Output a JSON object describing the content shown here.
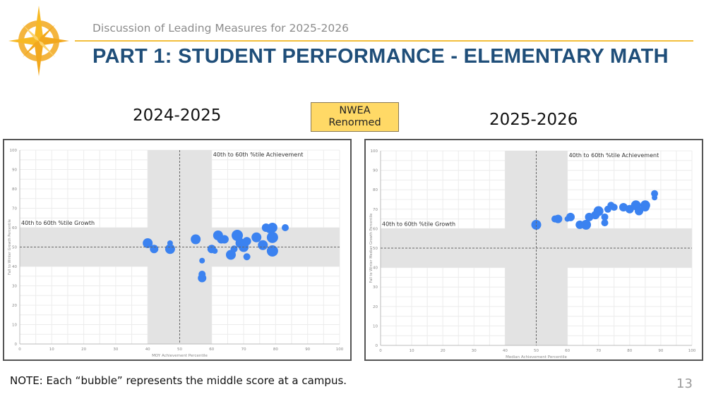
{
  "header": {
    "subtitle": "Discussion of Leading Measures for 2025-2026",
    "title": "PART 1:  STUDENT PERFORMANCE - ELEMENTARY MATH",
    "accent_color": "#f2be3c",
    "title_color": "#1f4e79"
  },
  "badge": {
    "line1": "NWEA",
    "line2": "Renormed",
    "color": "#ffd966"
  },
  "footer": {
    "note": "NOTE: Each “bubble” represents the middle score at a campus.",
    "page_number": "13"
  },
  "chart_data": [
    {
      "type": "scatter",
      "heading": "2024-2025",
      "xlabel": "MOY Achievement Percentile",
      "ylabel": "Fall to Winter Growth Percentile",
      "xlim": [
        0,
        100
      ],
      "ylim": [
        0,
        100
      ],
      "xticks": [
        "0",
        "10",
        "20",
        "30",
        "40",
        "50",
        "60",
        "70",
        "80",
        "90",
        "100"
      ],
      "yticks": [
        "0",
        "10",
        "20",
        "30",
        "40",
        "50",
        "60",
        "70",
        "80",
        "90",
        "100"
      ],
      "grid": true,
      "bands": {
        "x": [
          40,
          60
        ],
        "y": [
          40,
          60
        ],
        "color": "#e3e3e3"
      },
      "reference_lines": {
        "x": 50,
        "y": 50
      },
      "annotations": [
        "40th to 60th %tile Achievement",
        "40th to 60th %tile Growth"
      ],
      "marker_color": "#3b82f0",
      "points": [
        {
          "x": 40,
          "y": 52,
          "size": 7
        },
        {
          "x": 42,
          "y": 49,
          "size": 6
        },
        {
          "x": 47,
          "y": 52,
          "size": 4
        },
        {
          "x": 47,
          "y": 49,
          "size": 7
        },
        {
          "x": 55,
          "y": 54,
          "size": 7
        },
        {
          "x": 57,
          "y": 43,
          "size": 4
        },
        {
          "x": 57,
          "y": 36,
          "size": 5
        },
        {
          "x": 57,
          "y": 34,
          "size": 6
        },
        {
          "x": 60,
          "y": 49,
          "size": 6
        },
        {
          "x": 61,
          "y": 48,
          "size": 4
        },
        {
          "x": 62,
          "y": 56,
          "size": 7
        },
        {
          "x": 63,
          "y": 54,
          "size": 6
        },
        {
          "x": 64,
          "y": 54,
          "size": 6
        },
        {
          "x": 66,
          "y": 46,
          "size": 7
        },
        {
          "x": 67,
          "y": 49,
          "size": 5
        },
        {
          "x": 68,
          "y": 56,
          "size": 8
        },
        {
          "x": 69,
          "y": 52,
          "size": 7
        },
        {
          "x": 70,
          "y": 50,
          "size": 7
        },
        {
          "x": 71,
          "y": 45,
          "size": 5
        },
        {
          "x": 71,
          "y": 53,
          "size": 6
        },
        {
          "x": 74,
          "y": 55,
          "size": 7
        },
        {
          "x": 76,
          "y": 51,
          "size": 7
        },
        {
          "x": 77,
          "y": 60,
          "size": 6
        },
        {
          "x": 78,
          "y": 59,
          "size": 5
        },
        {
          "x": 79,
          "y": 60,
          "size": 7
        },
        {
          "x": 79,
          "y": 55,
          "size": 8
        },
        {
          "x": 79,
          "y": 48,
          "size": 8
        },
        {
          "x": 83,
          "y": 60,
          "size": 5
        }
      ]
    },
    {
      "type": "scatter",
      "heading": "2025-2026",
      "xlabel": "Median Achievement Percentile",
      "ylabel": "Fall to Winter Median Growth Percentile",
      "xlim": [
        0,
        100
      ],
      "ylim": [
        0,
        100
      ],
      "xticks": [
        "0",
        "10",
        "20",
        "30",
        "40",
        "50",
        "60",
        "70",
        "80",
        "90",
        "100"
      ],
      "yticks": [
        "0",
        "10",
        "20",
        "30",
        "40",
        "50",
        "60",
        "70",
        "80",
        "90",
        "100"
      ],
      "grid": true,
      "bands": {
        "x": [
          40,
          60
        ],
        "y": [
          40,
          60
        ],
        "color": "#e3e3e3"
      },
      "reference_lines": {
        "x": 50,
        "y": 50
      },
      "annotations": [
        "40th to 60th %tile Achievement",
        "40th to 60th %tile Growth"
      ],
      "marker_color": "#3b82f0",
      "points": [
        {
          "x": 50,
          "y": 62,
          "size": 7
        },
        {
          "x": 56,
          "y": 65,
          "size": 5
        },
        {
          "x": 57,
          "y": 65,
          "size": 6
        },
        {
          "x": 60,
          "y": 65,
          "size": 4
        },
        {
          "x": 61,
          "y": 66,
          "size": 6
        },
        {
          "x": 64,
          "y": 62,
          "size": 6
        },
        {
          "x": 65,
          "y": 62,
          "size": 5
        },
        {
          "x": 66,
          "y": 62,
          "size": 7
        },
        {
          "x": 67,
          "y": 66,
          "size": 6
        },
        {
          "x": 69,
          "y": 67,
          "size": 6
        },
        {
          "x": 70,
          "y": 69,
          "size": 7
        },
        {
          "x": 72,
          "y": 63,
          "size": 5
        },
        {
          "x": 72,
          "y": 66,
          "size": 5
        },
        {
          "x": 73,
          "y": 70,
          "size": 5
        },
        {
          "x": 74,
          "y": 72,
          "size": 5
        },
        {
          "x": 75,
          "y": 71,
          "size": 5
        },
        {
          "x": 78,
          "y": 71,
          "size": 6
        },
        {
          "x": 80,
          "y": 70,
          "size": 6
        },
        {
          "x": 82,
          "y": 72,
          "size": 7
        },
        {
          "x": 83,
          "y": 69,
          "size": 6
        },
        {
          "x": 85,
          "y": 72,
          "size": 7
        },
        {
          "x": 85,
          "y": 71,
          "size": 6
        },
        {
          "x": 88,
          "y": 78,
          "size": 5
        },
        {
          "x": 88,
          "y": 76,
          "size": 4
        }
      ]
    }
  ]
}
